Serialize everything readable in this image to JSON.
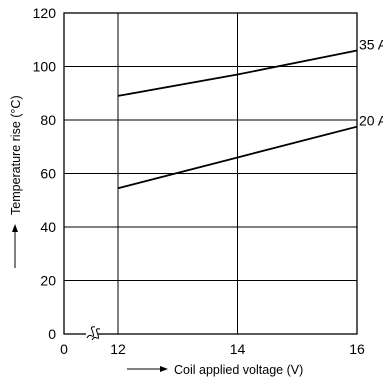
{
  "chart_data": {
    "type": "line",
    "xlabel": "Coil applied voltage (V)",
    "ylabel": "Temperature rise (°C)",
    "xlim": [
      0,
      16
    ],
    "ylim": [
      0,
      120
    ],
    "x_axis_break": true,
    "x_ticks": [
      {
        "value": 0,
        "label": "0"
      },
      {
        "value": 12,
        "label": "12"
      },
      {
        "value": 14,
        "label": "14"
      },
      {
        "value": 16,
        "label": "16"
      }
    ],
    "y_ticks": [
      {
        "value": 0,
        "label": "0"
      },
      {
        "value": 20,
        "label": "20"
      },
      {
        "value": 40,
        "label": "40"
      },
      {
        "value": 60,
        "label": "60"
      },
      {
        "value": 80,
        "label": "80"
      },
      {
        "value": 100,
        "label": "100"
      },
      {
        "value": 120,
        "label": "120"
      }
    ],
    "grid": true,
    "series": [
      {
        "name": "35 A",
        "x": [
          12,
          14,
          16
        ],
        "y": [
          89,
          97,
          106
        ]
      },
      {
        "name": "20 A",
        "x": [
          12,
          14,
          16
        ],
        "y": [
          54.5,
          66,
          77.5
        ]
      }
    ]
  }
}
